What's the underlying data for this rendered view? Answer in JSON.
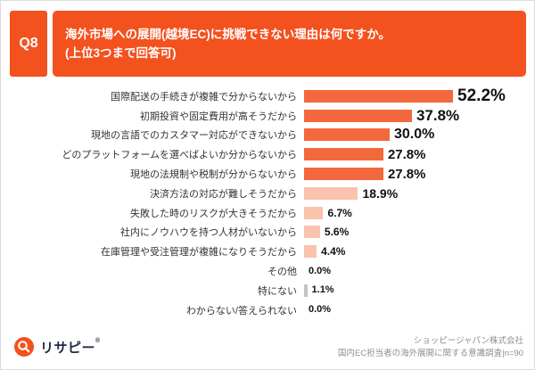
{
  "header": {
    "badge": "Q8",
    "title_line1": "海外市場への展開(越境EC)に挑戦できない理由は何ですか。",
    "title_line2": "(上位3つまで回答可)",
    "bg_color": "#f3511e"
  },
  "chart_data": {
    "type": "bar",
    "orientation": "horizontal",
    "title": "海外市場への展開(越境EC)に挑戦できない理由は何ですか。(上位3つまで回答可)",
    "categories": [
      "国際配送の手続きが複雑で分からないから",
      "初期投資や固定費用が高そうだから",
      "現地の言語でのカスタマー対応ができないから",
      "どのプラットフォームを選べばよいか分からないから",
      "現地の法規制や税制が分からないから",
      "決済方法の対応が難しそうだから",
      "失敗した時のリスクが大きそうだから",
      "社内にノウハウを持つ人材がいないから",
      "在庫管理や受注管理が複雑になりそうだから",
      "その他",
      "特にない",
      "わからない/答えられない"
    ],
    "values": [
      52.2,
      37.8,
      30.0,
      27.8,
      27.8,
      18.9,
      6.7,
      5.6,
      4.4,
      0.0,
      1.1,
      0.0
    ],
    "value_suffix": "%",
    "xlim": [
      0,
      60
    ],
    "grid": false,
    "legend": "none",
    "bar_colors": [
      "#f4683d",
      "#f4683d",
      "#f4683d",
      "#f4683d",
      "#f4683d",
      "#f9c3ae",
      "#f9c3ae",
      "#f9c3ae",
      "#f9c3ae",
      "#f9c3ae",
      "#c4c4c4",
      "#c4c4c4"
    ]
  },
  "footer": {
    "brand": "リサピー",
    "brand_reg": "®",
    "company": "ショッピージャパン株式会社",
    "survey_note": "国内EC担当者の海外展開に関する意識調査|n=90",
    "accent_color": "#f3511e"
  }
}
